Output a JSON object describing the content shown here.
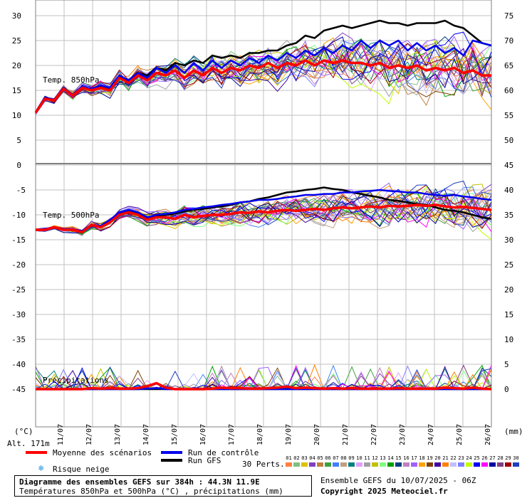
{
  "chart_data": {
    "type": "line",
    "title": "Diagramme des ensembles GEFS sur 384h : 44.3N 11.9E",
    "subtitle": "Températures 850hPa et 500hPa (°C) , précipitations (mm)",
    "ensemble_label": "Ensemble GEFS du 10/07/2025 - 06Z",
    "copyright": "Copyright 2025 Meteociel.fr",
    "altitude": "Alt. 171m",
    "left_unit": "(°C)",
    "right_unit": "(mm)",
    "dates": [
      "11/07",
      "12/07",
      "13/07",
      "14/07",
      "15/07",
      "16/07",
      "17/07",
      "18/07",
      "19/07",
      "20/07",
      "21/07",
      "22/07",
      "23/07",
      "24/07",
      "25/07",
      "26/07"
    ],
    "panels": [
      {
        "name": "Temp. 850hPa",
        "left_ticks": [
          "30",
          "25",
          "20",
          "15",
          "10",
          "5",
          "0"
        ],
        "right_ticks": [
          "75",
          "70",
          "65",
          "60",
          "55",
          "50"
        ],
        "ylim": [
          0,
          30
        ],
        "series": [
          {
            "name": "Moyenne des scénarios",
            "color": "#ff0000",
            "values": [
              10.5,
              13.3,
              13,
              15.3,
              14,
              15.5,
              15,
              15.5,
              15,
              17.5,
              16.5,
              18,
              17,
              18.5,
              18,
              19,
              17.5,
              19,
              18,
              19.5,
              18.5,
              19.5,
              19,
              20,
              19.5,
              20.5,
              19.5,
              20.5,
              20,
              21,
              20,
              21,
              20.5,
              21,
              20.5,
              20.5,
              20,
              20.5,
              19.5,
              20,
              19.5,
              20,
              19,
              19.5,
              19,
              19.5,
              18.5,
              19,
              18,
              18
            ]
          },
          {
            "name": "Run de contrôle",
            "color": "#0000ee",
            "values": [
              10.5,
              13.5,
              13.2,
              15.5,
              14.2,
              15.8,
              15.3,
              16,
              15.5,
              18,
              17,
              18.5,
              17.5,
              19.5,
              18.5,
              20,
              18.5,
              20.5,
              19,
              21,
              19.5,
              21,
              20,
              21.5,
              20.5,
              22,
              21,
              22.5,
              21.5,
              23,
              22,
              23.5,
              22.5,
              24,
              23,
              25,
              23.5,
              25,
              24,
              25,
              23,
              24.5,
              23,
              24,
              22.5,
              23.5,
              22,
              25,
              24.5,
              24
            ]
          },
          {
            "name": "Run GFS",
            "color": "#000000",
            "values": [
              10.5,
              13.4,
              13,
              15.5,
              14,
              15.6,
              15.2,
              15.8,
              15.3,
              17.8,
              17,
              18.5,
              18,
              19.5,
              19,
              20.5,
              20,
              21,
              20.5,
              22,
              21.5,
              22,
              21.5,
              22.5,
              22.5,
              23,
              23,
              24,
              24.5,
              26,
              25.5,
              27,
              27.5,
              28,
              27.5,
              28,
              28.5,
              29,
              28.5,
              28.5,
              28,
              28.5,
              28.5,
              28.5,
              29,
              28,
              27.5,
              26,
              24.5,
              24
            ]
          }
        ]
      },
      {
        "name": "Temp. 500hPa",
        "left_ticks": [
          "-5",
          "-10",
          "-15",
          "-20",
          "-25",
          "-30",
          "-35",
          "-40",
          "-45"
        ],
        "right_ticks": [
          "45",
          "40",
          "35",
          "30",
          "25",
          "20",
          "15",
          "10",
          "5",
          "0"
        ],
        "ylim": [
          -45,
          0
        ],
        "series": [
          {
            "name": "Moyenne des scénarios",
            "color": "#ff0000",
            "values": [
              -13,
              -13,
              -12.5,
              -13,
              -13,
              -13.5,
              -12,
              -12.5,
              -11.5,
              -10,
              -9.5,
              -10,
              -11,
              -10.5,
              -10.5,
              -10.8,
              -10,
              -10.5,
              -10.2,
              -10,
              -10,
              -9.8,
              -9.5,
              -9.6,
              -9.3,
              -9.5,
              -9.2,
              -9,
              -9.2,
              -9,
              -8.8,
              -9,
              -8.7,
              -8.5,
              -8.7,
              -8.5,
              -8.3,
              -8.5,
              -8.2,
              -8.3,
              -8.2,
              -8,
              -8.2,
              -8,
              -8.3,
              -8.5,
              -8.4,
              -8.6,
              -8.8,
              -9
            ]
          },
          {
            "name": "Run de contrôle",
            "color": "#0000ee",
            "values": [
              -13,
              -12.8,
              -12.5,
              -12.8,
              -13,
              -13.2,
              -12,
              -12.2,
              -11,
              -9.5,
              -9,
              -9.5,
              -10.5,
              -10,
              -9.8,
              -9.5,
              -9,
              -8.8,
              -8.5,
              -8.3,
              -8,
              -7.8,
              -7.5,
              -7.3,
              -7,
              -7,
              -6.8,
              -6.5,
              -6.3,
              -6,
              -6,
              -5.8,
              -5.8,
              -5.5,
              -5.5,
              -5.3,
              -5.2,
              -5,
              -5.2,
              -5.3,
              -5.5,
              -5.5,
              -5.8,
              -6,
              -6.2,
              -6,
              -6.3,
              -6.5,
              -6.8,
              -7
            ]
          },
          {
            "name": "Run GFS",
            "color": "#000000",
            "values": [
              -13,
              -12.9,
              -12.5,
              -12.9,
              -13,
              -13.3,
              -12,
              -12.4,
              -11.2,
              -9.8,
              -9.2,
              -9.8,
              -10.5,
              -10.2,
              -10,
              -9.7,
              -9.3,
              -9,
              -8.8,
              -8.5,
              -8.3,
              -8,
              -7.5,
              -7.3,
              -6.8,
              -6.5,
              -6,
              -5.5,
              -5.3,
              -5,
              -4.8,
              -4.5,
              -4.8,
              -5,
              -5.5,
              -5.8,
              -6.2,
              -6.5,
              -7,
              -7.2,
              -7.5,
              -7.8,
              -8,
              -8.5,
              -9,
              -9.2,
              -9.5,
              -10,
              -10.5,
              -10.8
            ]
          }
        ]
      },
      {
        "name": "Précipitations",
        "ylim": [
          0,
          10
        ],
        "series": [
          {
            "name": "Moyenne des scénarios",
            "color": "#ff0000",
            "values": [
              0,
              0,
              0,
              0,
              0,
              0,
              0.2,
              0.1,
              0.2,
              0.1,
              0.1,
              0.2,
              0.6,
              1.2,
              0.3,
              0,
              0,
              0,
              0,
              0.1,
              0.3,
              0.2,
              0.2,
              0.1,
              0.1,
              0.2,
              0.3,
              0.5,
              0.2,
              0.3,
              0.2,
              0.1,
              0.2,
              0.1,
              0.2,
              0.1,
              0.1,
              0.1,
              0.1,
              0.2,
              0.1,
              0.1,
              0.1,
              0.1,
              0.3,
              0.2,
              0.1,
              0.3,
              0.1,
              0
            ]
          },
          {
            "name": "Run de contrôle",
            "color": "#0000ee",
            "values": [
              0,
              0,
              0,
              0,
              0,
              0,
              0,
              0,
              0,
              0,
              0,
              0,
              0.1,
              0.2,
              0,
              0,
              0,
              0,
              0,
              0,
              0,
              0,
              0,
              0,
              0,
              0,
              0,
              0,
              0,
              0,
              0,
              0,
              0,
              0,
              0,
              0,
              0,
              0,
              0,
              0,
              0,
              0,
              0,
              0,
              0,
              0,
              0,
              0,
              0,
              0
            ]
          },
          {
            "name": "Run GFS",
            "color": "#000000",
            "values": [
              0,
              0,
              0,
              0,
              0,
              0,
              0,
              0,
              0,
              0,
              0,
              0,
              0,
              0,
              0,
              0,
              0,
              0,
              0,
              0,
              0,
              0,
              0,
              0,
              0,
              0,
              0,
              0,
              0,
              0,
              0,
              0,
              0,
              0,
              0,
              0,
              0,
              0,
              0,
              0,
              0,
              0,
              0,
              0,
              0,
              0,
              0,
              0,
              0,
              0
            ]
          }
        ]
      }
    ],
    "legend": {
      "mean": "Moyenne des scénarios",
      "control": "Run de contrôle",
      "gfs": "Run GFS",
      "snow": "Risque neige",
      "perts_label": "30 Perts.",
      "perts": [
        "01",
        "02",
        "03",
        "04",
        "05",
        "06",
        "07",
        "08",
        "09",
        "10",
        "11",
        "12",
        "13",
        "14",
        "15",
        "16",
        "17",
        "18",
        "19",
        "20",
        "21",
        "22",
        "23",
        "24",
        "25",
        "26",
        "27",
        "28",
        "29",
        "30"
      ],
      "pert_colors": [
        "#ff8040",
        "#80c080",
        "#e0c000",
        "#8040c0",
        "#c08040",
        "#40a040",
        "#4080ff",
        "#c0a080",
        "#008080",
        "#e0a0ff",
        "#a0a0a0",
        "#c0c000",
        "#80ff80",
        "#00a000",
        "#004080",
        "#c080c0",
        "#a060ff",
        "#ffa000",
        "#804000",
        "#4000a0",
        "#ff8000",
        "#c0c0ff",
        "#8080ff",
        "#c0ff00",
        "#0000ff",
        "#ff00ff",
        "#0000a0",
        "#804080",
        "#a00000",
        "#2040c0"
      ]
    }
  }
}
